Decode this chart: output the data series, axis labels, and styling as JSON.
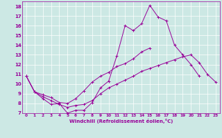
{
  "title": "",
  "xlabel": "Windchill (Refroidissement éolien,°C)",
  "ylabel": "",
  "background_color": "#cce8e4",
  "line_color": "#990099",
  "grid_color": "#ffffff",
  "xlim": [
    -0.5,
    23.5
  ],
  "ylim": [
    7,
    18.5
  ],
  "xticks": [
    0,
    1,
    2,
    3,
    4,
    5,
    6,
    7,
    8,
    9,
    10,
    11,
    12,
    13,
    14,
    15,
    16,
    17,
    18,
    19,
    20,
    21,
    22,
    23
  ],
  "yticks": [
    7,
    8,
    9,
    10,
    11,
    12,
    13,
    14,
    15,
    16,
    17,
    18
  ],
  "series": [
    [
      10.8,
      9.2,
      8.5,
      7.9,
      8.0,
      7.0,
      7.3,
      7.3,
      8.1,
      9.6,
      10.3,
      12.9,
      16.0,
      15.5,
      16.2,
      18.1,
      16.9,
      16.5,
      14.0,
      13.0,
      12.0,
      10.8,
      null,
      null
    ],
    [
      10.8,
      9.2,
      8.9,
      8.6,
      8.1,
      8.0,
      8.5,
      9.3,
      10.2,
      10.8,
      11.2,
      11.8,
      12.1,
      12.6,
      13.3,
      13.7,
      null,
      null,
      null,
      null,
      null,
      null,
      null,
      null
    ],
    [
      10.8,
      9.2,
      8.7,
      8.3,
      7.9,
      7.6,
      7.8,
      7.9,
      8.3,
      9.0,
      9.6,
      10.0,
      10.4,
      10.8,
      11.3,
      11.6,
      11.9,
      12.2,
      12.5,
      12.8,
      13.0,
      12.2,
      11.0,
      10.2
    ]
  ]
}
